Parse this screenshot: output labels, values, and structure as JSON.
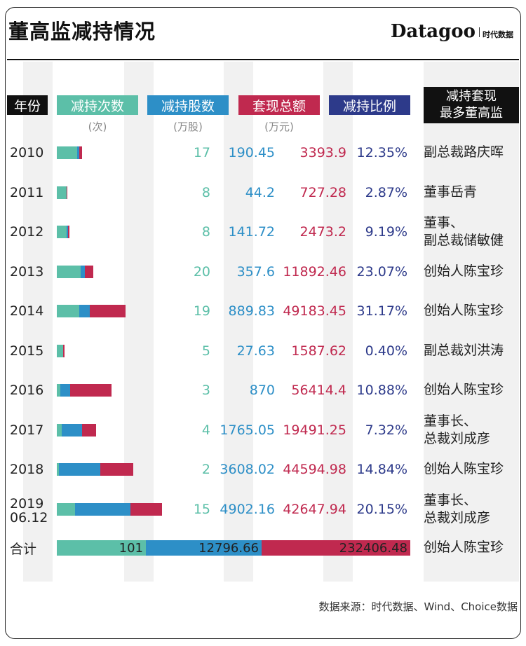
{
  "title": "董高监减持情况",
  "brand": {
    "name": "Datagoo",
    "sub": "时代数据"
  },
  "headers": {
    "year": "年份",
    "count": "减持次数",
    "count_unit": "(次)",
    "shares": "减持股数",
    "shares_unit": "(万股)",
    "amount": "套现总额",
    "amount_unit": "(万元)",
    "ratio": "减持比例",
    "person_line1": "减持套现",
    "person_line2": "最多董高监"
  },
  "colors": {
    "count": "#5cbfa8",
    "shares": "#2d8fc7",
    "amount": "#c0294f",
    "ratio": "#2d3a8a",
    "black": "#111111"
  },
  "chart_data": {
    "type": "bar",
    "stacked": true,
    "orientation": "horizontal",
    "title": "董高监减持情况",
    "categories": [
      "2010",
      "2011",
      "2012",
      "2013",
      "2014",
      "2015",
      "2016",
      "2017",
      "2018",
      "2019 06.12"
    ],
    "series": [
      {
        "name": "减持次数",
        "unit": "次",
        "values": [
          17,
          8,
          8,
          20,
          19,
          5,
          3,
          4,
          2,
          15
        ]
      },
      {
        "name": "减持股数",
        "unit": "万股",
        "values": [
          190.45,
          44.2,
          141.72,
          357.6,
          889.83,
          27.63,
          870,
          1765.05,
          3608.02,
          4902.16
        ]
      },
      {
        "name": "套现总额",
        "unit": "万元",
        "values": [
          3393.9,
          727.28,
          2473.2,
          11892.46,
          49183.45,
          1587.62,
          56414.4,
          19491.25,
          44594.98,
          42647.94
        ]
      },
      {
        "name": "减持比例",
        "values": [
          "12.35%",
          "2.87%",
          "9.19%",
          "23.07%",
          "31.17%",
          "0.40%",
          "10.88%",
          "7.32%",
          "14.84%",
          "20.15%"
        ]
      }
    ],
    "totals": {
      "label": "合计",
      "count": 101,
      "shares": "12796.66",
      "amount": "232406.48",
      "person": "创始人陈宝珍"
    }
  },
  "rows": [
    {
      "year": "2010",
      "year2": "",
      "count": "17",
      "shares": "190.45",
      "amount": "3393.9",
      "ratio": "12.35%",
      "person1": "副总裁路庆晖",
      "person2": ""
    },
    {
      "year": "2011",
      "year2": "",
      "count": "8",
      "shares": "44.2",
      "amount": "727.28",
      "ratio": "2.87%",
      "person1": "董事岳青",
      "person2": ""
    },
    {
      "year": "2012",
      "year2": "",
      "count": "8",
      "shares": "141.72",
      "amount": "2473.2",
      "ratio": "9.19%",
      "person1": "董事、",
      "person2": "副总裁储敏健"
    },
    {
      "year": "2013",
      "year2": "",
      "count": "20",
      "shares": "357.6",
      "amount": "11892.46",
      "ratio": "23.07%",
      "person1": "创始人陈宝珍",
      "person2": ""
    },
    {
      "year": "2014",
      "year2": "",
      "count": "19",
      "shares": "889.83",
      "amount": "49183.45",
      "ratio": "31.17%",
      "person1": "创始人陈宝珍",
      "person2": ""
    },
    {
      "year": "2015",
      "year2": "",
      "count": "5",
      "shares": "27.63",
      "amount": "1587.62",
      "ratio": "0.40%",
      "person1": "副总裁刘洪涛",
      "person2": ""
    },
    {
      "year": "2016",
      "year2": "",
      "count": "3",
      "shares": "870",
      "amount": "56414.4",
      "ratio": "10.88%",
      "person1": "创始人陈宝珍",
      "person2": ""
    },
    {
      "year": "2017",
      "year2": "",
      "count": "4",
      "shares": "1765.05",
      "amount": "19491.25",
      "ratio": "7.32%",
      "person1": "董事长、",
      "person2": "总裁刘成彦"
    },
    {
      "year": "2018",
      "year2": "",
      "count": "2",
      "shares": "3608.02",
      "amount": "44594.98",
      "ratio": "14.84%",
      "person1": "创始人陈宝珍",
      "person2": ""
    },
    {
      "year": "2019",
      "year2": "06.12",
      "count": "15",
      "shares": "4902.16",
      "amount": "42647.94",
      "ratio": "20.15%",
      "person1": "董事长、",
      "person2": "总裁刘成彦"
    }
  ],
  "total": {
    "label": "合计",
    "count": "101",
    "shares": "12796.66",
    "amount": "232406.48",
    "person": "创始人陈宝珍"
  },
  "source": "数据来源：时代数据、Wind、Choice数据"
}
